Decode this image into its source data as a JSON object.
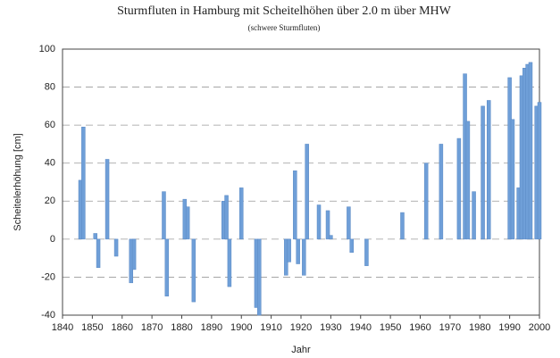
{
  "chart_data": {
    "type": "bar",
    "title": "Sturmfluten in Hamburg mit Scheitelhöhen über 2.0 m über MHW",
    "subtitle": "(schwere Sturmfluten)",
    "xlabel": "Jahr",
    "ylabel": "Scheitelerhöhung [cm]",
    "x": [
      1846,
      1847,
      1851,
      1852,
      1855,
      1858,
      1863,
      1864,
      1874,
      1875,
      1881,
      1882,
      1884,
      1894,
      1895,
      1896,
      1900,
      1905,
      1906,
      1915,
      1916,
      1918,
      1919,
      1921,
      1922,
      1926,
      1929,
      1930,
      1936,
      1937,
      1942,
      1954,
      1962,
      1967,
      1973,
      1975,
      1976,
      1978,
      1981,
      1983,
      1990,
      1991,
      1993,
      1994,
      1995,
      1996,
      1997,
      1999,
      2000
    ],
    "values": [
      31,
      59,
      3,
      -15,
      42,
      -9,
      -23,
      -16,
      25,
      -30,
      21,
      17,
      -33,
      20,
      23,
      -25,
      27,
      -36,
      -40,
      -19,
      -12,
      36,
      -13,
      -19,
      50,
      18,
      15,
      2,
      17,
      -7,
      -14,
      14,
      40,
      50,
      53,
      87,
      62,
      25,
      70,
      73,
      85,
      63,
      27,
      86,
      90,
      92,
      93,
      70,
      72
    ],
    "color": "#6f9fd8",
    "xlim": [
      1840,
      2000
    ],
    "xticks": [
      1840,
      1850,
      1860,
      1870,
      1880,
      1890,
      1900,
      1910,
      1920,
      1930,
      1940,
      1950,
      1960,
      1970,
      1980,
      1990,
      2000
    ],
    "ylim": [
      -40,
      100
    ],
    "yticks": [
      -40,
      -20,
      0,
      20,
      40,
      60,
      80,
      100
    ],
    "grid": true
  }
}
